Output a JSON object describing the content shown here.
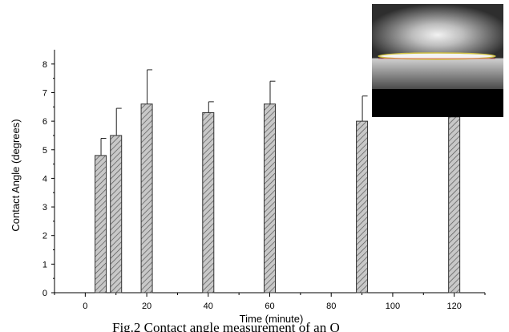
{
  "chart_data": {
    "type": "bar",
    "xlabel": "Time (minute)",
    "ylabel": "Contact Angle (degrees)",
    "x": [
      5,
      10,
      20,
      40,
      60,
      90,
      120
    ],
    "values": [
      4.8,
      5.5,
      6.6,
      6.3,
      6.6,
      6.0,
      6.15
    ],
    "errors": [
      0.6,
      0.95,
      1.2,
      0.38,
      0.8,
      0.88,
      0.28
    ],
    "xlim": [
      -10,
      130
    ],
    "ylim": [
      0,
      8.5
    ],
    "xticks": [
      0,
      20,
      40,
      60,
      80,
      100,
      120
    ],
    "yticks": [
      0,
      1,
      2,
      3,
      4,
      5,
      6,
      7,
      8
    ],
    "bar_fill": "hatched grey",
    "grid": false,
    "legend": "none"
  },
  "inset": {
    "description_icon": "droplet-photo",
    "colors": {
      "background_top": "#3a3a3a",
      "glow": "#e8e8e8",
      "bottom": "#000000",
      "drop_edge": "#d9c24a"
    }
  },
  "caption": "Fig.2 Contact angle measurement of an O"
}
